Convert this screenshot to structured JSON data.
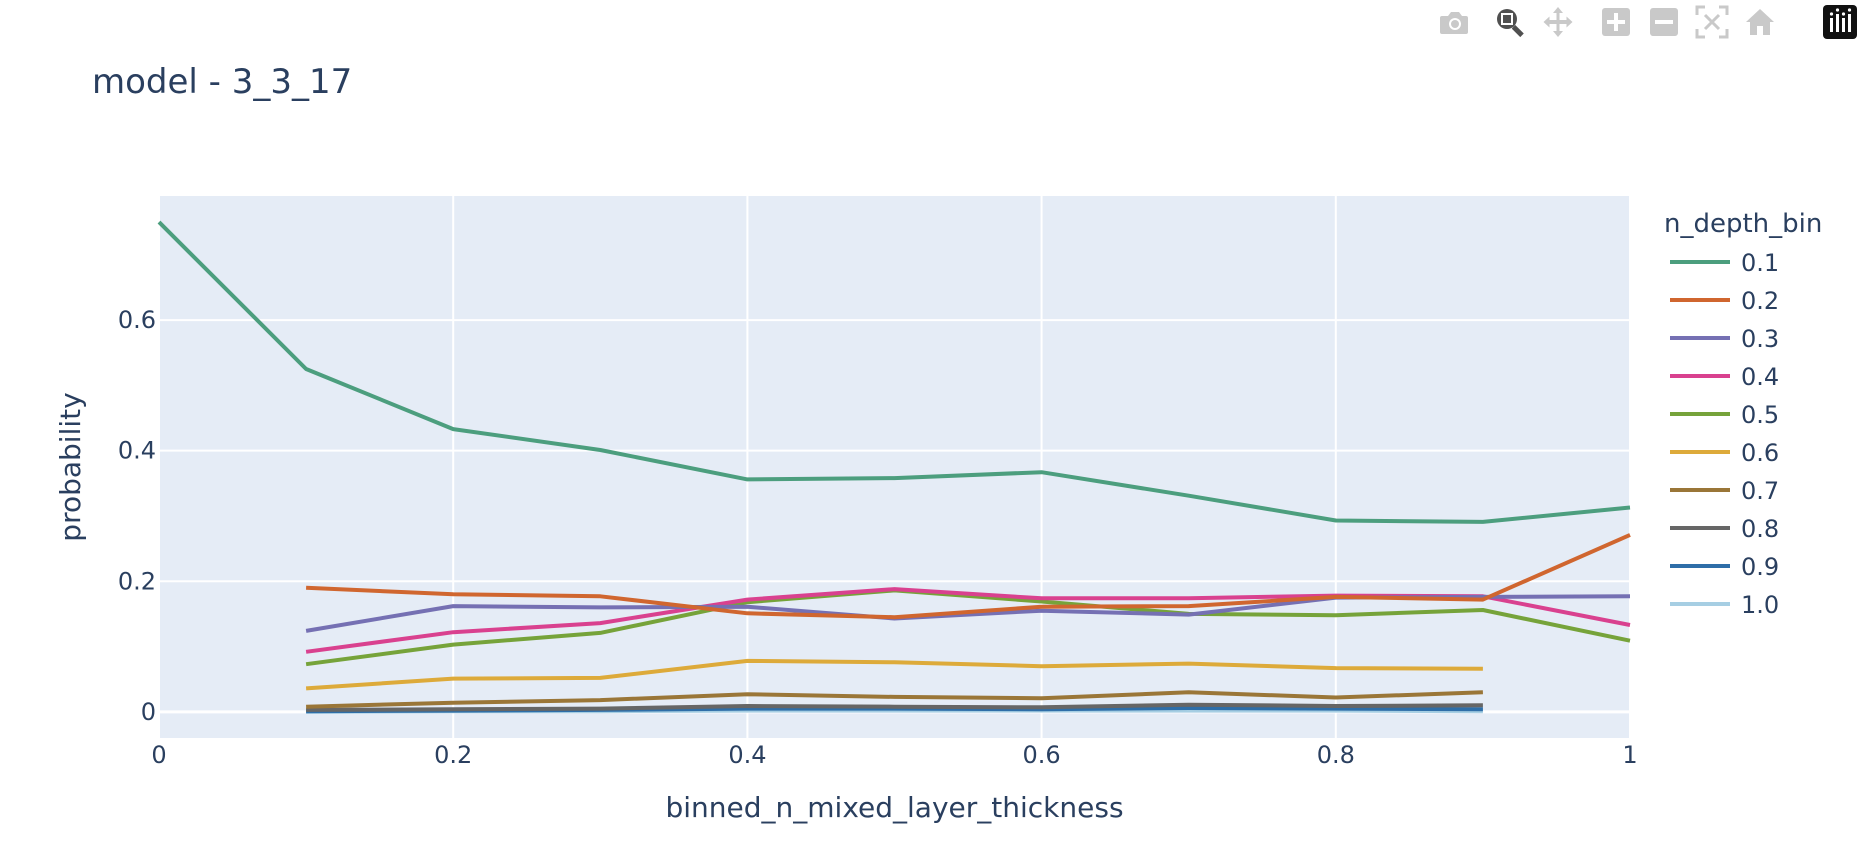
{
  "modebar": {
    "buttons": [
      {
        "name": "camera-icon",
        "label": "Download plot as a png"
      },
      {
        "name": "zoom-icon",
        "label": "Zoom"
      },
      {
        "name": "pan-icon",
        "label": "Pan"
      },
      {
        "name": "zoom-in-icon",
        "label": "Zoom in"
      },
      {
        "name": "zoom-out-icon",
        "label": "Zoom out"
      },
      {
        "name": "autoscale-icon",
        "label": "Autoscale"
      },
      {
        "name": "home-icon",
        "label": "Reset axes"
      },
      {
        "name": "plotly-logo-icon",
        "label": "Produced with Plotly"
      }
    ]
  },
  "chart_data": {
    "type": "line",
    "title": "model - 3_3_17",
    "xlabel": "binned_n_mixed_layer_thickness",
    "ylabel": "probability",
    "xlim": [
      0,
      1
    ],
    "ylim": [
      -0.04,
      0.79
    ],
    "x_ticks": [
      0,
      0.2,
      0.4,
      0.6,
      0.8,
      1
    ],
    "x_tick_labels": [
      "0",
      "0.2",
      "0.4",
      "0.6",
      "0.8",
      "1"
    ],
    "y_ticks": [
      0,
      0.2,
      0.4,
      0.6
    ],
    "y_tick_labels": [
      "0",
      "0.2",
      "0.4",
      "0.6"
    ],
    "grid": true,
    "plot_bgcolor": "#e5ecf6",
    "legend": {
      "title": "n_depth_bin",
      "position": "right"
    },
    "series": [
      {
        "name": "0.1",
        "color": "#4c9e7e",
        "x": [
          0,
          0.1,
          0.2,
          0.3,
          0.4,
          0.5,
          0.6,
          0.7,
          0.8,
          0.9,
          1.0
        ],
        "y": [
          0.75,
          0.525,
          0.433,
          0.401,
          0.356,
          0.358,
          0.367,
          0.331,
          0.293,
          0.291,
          0.313
        ]
      },
      {
        "name": "0.2",
        "color": "#d0662f",
        "x": [
          0.1,
          0.2,
          0.3,
          0.4,
          0.5,
          0.6,
          0.7,
          0.8,
          0.9,
          1.0
        ],
        "y": [
          0.19,
          0.18,
          0.177,
          0.151,
          0.145,
          0.161,
          0.162,
          0.176,
          0.172,
          0.271
        ]
      },
      {
        "name": "0.3",
        "color": "#7570b3",
        "x": [
          0.1,
          0.2,
          0.3,
          0.4,
          0.5,
          0.6,
          0.7,
          0.8,
          0.9,
          1.0
        ],
        "y": [
          0.124,
          0.162,
          0.16,
          0.161,
          0.143,
          0.155,
          0.149,
          0.175,
          0.176,
          0.177
        ]
      },
      {
        "name": "0.4",
        "color": "#d9418f",
        "x": [
          0.1,
          0.2,
          0.3,
          0.4,
          0.5,
          0.6,
          0.7,
          0.8,
          0.9,
          1.0
        ],
        "y": [
          0.092,
          0.122,
          0.136,
          0.172,
          0.188,
          0.174,
          0.174,
          0.178,
          0.177,
          0.133
        ]
      },
      {
        "name": "0.5",
        "color": "#76a33a",
        "x": [
          0.1,
          0.2,
          0.3,
          0.4,
          0.5,
          0.6,
          0.7,
          0.8,
          0.9,
          1.0
        ],
        "y": [
          0.073,
          0.103,
          0.121,
          0.168,
          0.186,
          0.169,
          0.15,
          0.148,
          0.156,
          0.109
        ]
      },
      {
        "name": "0.6",
        "color": "#ddaa3a",
        "x": [
          0.1,
          0.2,
          0.3,
          0.4,
          0.5,
          0.6,
          0.7,
          0.8,
          0.9
        ],
        "y": [
          0.036,
          0.051,
          0.052,
          0.078,
          0.076,
          0.07,
          0.074,
          0.067,
          0.066
        ]
      },
      {
        "name": "0.7",
        "color": "#9a7638",
        "x": [
          0.1,
          0.2,
          0.3,
          0.4,
          0.5,
          0.6,
          0.7,
          0.8,
          0.9
        ],
        "y": [
          0.008,
          0.014,
          0.018,
          0.027,
          0.023,
          0.021,
          0.03,
          0.022,
          0.03
        ]
      },
      {
        "name": "0.8",
        "color": "#666666",
        "x": [
          0.1,
          0.2,
          0.3,
          0.4,
          0.5,
          0.6,
          0.7,
          0.8,
          0.9
        ],
        "y": [
          0.003,
          0.004,
          0.005,
          0.009,
          0.008,
          0.007,
          0.011,
          0.009,
          0.01
        ]
      },
      {
        "name": "0.9",
        "color": "#2e6ea8",
        "x": [
          0.1,
          0.2,
          0.3,
          0.4,
          0.5,
          0.6,
          0.7,
          0.8,
          0.9
        ],
        "y": [
          0.001,
          0.002,
          0.003,
          0.005,
          0.005,
          0.004,
          0.006,
          0.005,
          0.004
        ]
      },
      {
        "name": "1.0",
        "color": "#a6cee3",
        "x": [
          0.1,
          0.2,
          0.3,
          0.4,
          0.5,
          0.6,
          0.7,
          0.8,
          0.9
        ],
        "y": [
          0.0,
          0.001,
          0.001,
          0.002,
          0.002,
          0.002,
          0.002,
          0.002,
          0.001
        ]
      }
    ]
  }
}
